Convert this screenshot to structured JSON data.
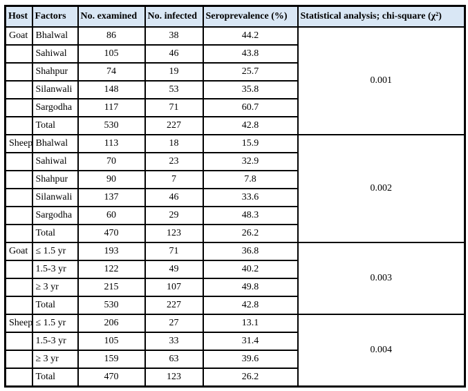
{
  "table": {
    "columns": [
      "Host",
      "Factors",
      "No. examined",
      "No. infected",
      "Seroprevalence (%)",
      "Statistical analysis; chi-square (χ²)"
    ],
    "sections": [
      {
        "host": "Goat",
        "chi_square": "0.001",
        "rows": [
          {
            "factor": "Bhalwal",
            "examined": "86",
            "infected": "38",
            "seroprevalence": "44.2"
          },
          {
            "factor": "Sahiwal",
            "examined": "105",
            "infected": "46",
            "seroprevalence": "43.8"
          },
          {
            "factor": "Shahpur",
            "examined": "74",
            "infected": "19",
            "seroprevalence": "25.7"
          },
          {
            "factor": "Silanwali",
            "examined": "148",
            "infected": "53",
            "seroprevalence": "35.8"
          },
          {
            "factor": "Sargodha",
            "examined": "117",
            "infected": "71",
            "seroprevalence": "60.7"
          },
          {
            "factor": "Total",
            "examined": "530",
            "infected": "227",
            "seroprevalence": "42.8"
          }
        ]
      },
      {
        "host": "Sheep",
        "chi_square": "0.002",
        "rows": [
          {
            "factor": "Bhalwal",
            "examined": "113",
            "infected": "18",
            "seroprevalence": "15.9"
          },
          {
            "factor": "Sahiwal",
            "examined": "70",
            "infected": "23",
            "seroprevalence": "32.9"
          },
          {
            "factor": "Shahpur",
            "examined": "90",
            "infected": "7",
            "seroprevalence": "7.8"
          },
          {
            "factor": "Silanwali",
            "examined": "137",
            "infected": "46",
            "seroprevalence": "33.6"
          },
          {
            "factor": "Sargodha",
            "examined": "60",
            "infected": "29",
            "seroprevalence": "48.3"
          },
          {
            "factor": "Total",
            "examined": "470",
            "infected": "123",
            "seroprevalence": "26.2"
          }
        ]
      },
      {
        "host": "Goat",
        "chi_square": "0.003",
        "rows": [
          {
            "factor": "≤ 1.5 yr",
            "examined": "193",
            "infected": "71",
            "seroprevalence": "36.8"
          },
          {
            "factor": "1.5-3 yr",
            "examined": "122",
            "infected": "49",
            "seroprevalence": "40.2"
          },
          {
            "factor": "≥ 3 yr",
            "examined": "215",
            "infected": "107",
            "seroprevalence": "49.8"
          },
          {
            "factor": "Total",
            "examined": "530",
            "infected": "227",
            "seroprevalence": "42.8"
          }
        ]
      },
      {
        "host": "Sheep",
        "chi_square": "0.004",
        "rows": [
          {
            "factor": "≤ 1.5 yr",
            "examined": "206",
            "infected": "27",
            "seroprevalence": "13.1"
          },
          {
            "factor": "1.5-3 yr",
            "examined": "105",
            "infected": "33",
            "seroprevalence": "31.4"
          },
          {
            "factor": "≥ 3 yr",
            "examined": "159",
            "infected": "63",
            "seroprevalence": "39.6"
          },
          {
            "factor": "Total",
            "examined": "470",
            "infected": "123",
            "seroprevalence": "26.2"
          }
        ]
      }
    ]
  },
  "colors": {
    "header_bg": "#d9e7f5",
    "border": "#000000",
    "text": "#000000",
    "page_bg": "#ffffff"
  }
}
